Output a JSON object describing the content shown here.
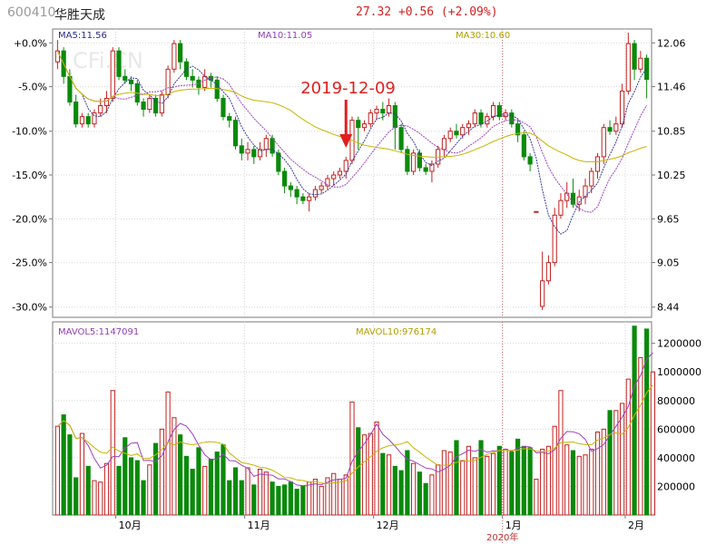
{
  "header": {
    "code": "600410",
    "name": "华胜天成",
    "quote": "27.32  +0.56  (+2.09%)"
  },
  "colors": {
    "up": "#c42020",
    "down": "#0a8a0a",
    "ma5": "#3a3a9a",
    "ma10": "#a040c0",
    "ma30": "#c8b400",
    "grid": "#d8d8d8",
    "frame": "#7a7a7a",
    "annotation": "#e02020",
    "label_blue": "#2a2a8a",
    "label_purple": "#9040b0",
    "label_yellow": "#b0a000"
  },
  "chart_data": [
    {
      "type": "candlestick",
      "title": "",
      "legend": [
        {
          "name": "MA5",
          "value": "11.56"
        },
        {
          "name": "MA10",
          "value": "11.05"
        },
        {
          "name": "MA30",
          "value": "10.60"
        }
      ],
      "left_axis_ticks": [
        "+0.0%",
        "-5.0%",
        "-10.0%",
        "-15.0%",
        "-20.0%",
        "-25.0%",
        "-30.0%"
      ],
      "right_axis_ticks": [
        "12.06",
        "11.46",
        "10.85",
        "10.25",
        "9.65",
        "9.05",
        "8.44"
      ],
      "ylim": [
        8.3,
        12.25
      ],
      "x_labels": [
        "10月",
        "11月",
        "12月",
        "1月",
        "2月"
      ],
      "x_sublabel": "2020年",
      "watermark": "CFi.CN",
      "annotation": {
        "text": "2019-12-09",
        "arrow": "down"
      },
      "candles": [
        [
          11.8,
          11.95,
          12.1,
          11.7
        ],
        [
          11.95,
          11.6,
          12.0,
          11.5
        ],
        [
          11.6,
          11.25,
          11.7,
          11.2
        ],
        [
          11.25,
          10.95,
          11.35,
          10.9
        ],
        [
          10.95,
          11.05,
          11.1,
          10.9
        ],
        [
          11.05,
          10.95,
          11.1,
          10.9
        ],
        [
          10.95,
          11.1,
          11.15,
          10.9
        ],
        [
          11.1,
          11.2,
          11.3,
          11.05
        ],
        [
          11.2,
          11.3,
          11.4,
          11.1
        ],
        [
          11.3,
          11.95,
          12.0,
          11.25
        ],
        [
          11.95,
          11.6,
          12.0,
          11.55
        ],
        [
          11.6,
          11.55,
          11.7,
          11.5
        ],
        [
          11.55,
          11.5,
          11.6,
          11.4
        ],
        [
          11.5,
          11.25,
          11.55,
          11.2
        ],
        [
          11.25,
          11.15,
          11.3,
          11.05
        ],
        [
          11.15,
          11.3,
          11.35,
          11.1
        ],
        [
          11.3,
          11.1,
          11.35,
          11.05
        ],
        [
          11.1,
          11.35,
          11.4,
          11.05
        ],
        [
          11.35,
          11.7,
          11.75,
          11.3
        ],
        [
          11.7,
          12.05,
          12.1,
          11.65
        ],
        [
          12.05,
          11.8,
          12.1,
          11.7
        ],
        [
          11.8,
          11.6,
          11.85,
          11.55
        ],
        [
          11.6,
          11.55,
          11.7,
          11.45
        ],
        [
          11.55,
          11.45,
          11.6,
          11.35
        ],
        [
          11.45,
          11.6,
          11.7,
          11.4
        ],
        [
          11.6,
          11.55,
          11.65,
          11.45
        ],
        [
          11.55,
          11.3,
          11.6,
          11.25
        ],
        [
          11.3,
          11.05,
          11.35,
          11.0
        ],
        [
          11.05,
          11.0,
          11.1,
          10.9
        ],
        [
          11.0,
          10.65,
          11.05,
          10.6
        ],
        [
          10.65,
          10.55,
          10.75,
          10.45
        ],
        [
          10.55,
          10.6,
          10.7,
          10.45
        ],
        [
          10.6,
          10.5,
          10.65,
          10.4
        ],
        [
          10.5,
          10.6,
          10.7,
          10.45
        ],
        [
          10.6,
          10.75,
          10.8,
          10.5
        ],
        [
          10.75,
          10.55,
          10.8,
          10.5
        ],
        [
          10.55,
          10.3,
          10.6,
          10.25
        ],
        [
          10.3,
          10.1,
          10.35,
          10.0
        ],
        [
          10.1,
          10.05,
          10.15,
          9.95
        ],
        [
          10.05,
          9.95,
          10.1,
          9.85
        ],
        [
          9.95,
          9.9,
          10.0,
          9.85
        ],
        [
          9.9,
          9.95,
          10.0,
          9.75
        ],
        [
          9.95,
          10.05,
          10.1,
          9.9
        ],
        [
          10.05,
          10.1,
          10.15,
          10.0
        ],
        [
          10.1,
          10.2,
          10.25,
          10.05
        ],
        [
          10.2,
          10.25,
          10.3,
          10.1
        ],
        [
          10.25,
          10.3,
          10.35,
          10.2
        ],
        [
          10.3,
          10.45,
          10.5,
          10.2
        ],
        [
          10.45,
          11.0,
          11.05,
          10.4
        ],
        [
          11.0,
          10.9,
          11.05,
          10.6
        ],
        [
          10.9,
          10.95,
          11.0,
          10.85
        ],
        [
          10.95,
          11.1,
          11.15,
          10.9
        ],
        [
          11.1,
          11.15,
          11.2,
          11.0
        ],
        [
          11.15,
          11.1,
          11.25,
          11.0
        ],
        [
          11.1,
          11.2,
          11.3,
          11.05
        ],
        [
          11.2,
          10.9,
          11.25,
          10.6
        ],
        [
          10.9,
          10.6,
          10.95,
          10.55
        ],
        [
          10.6,
          10.3,
          10.65,
          10.25
        ],
        [
          10.3,
          10.55,
          10.6,
          10.25
        ],
        [
          10.55,
          10.35,
          10.6,
          10.3
        ],
        [
          10.35,
          10.3,
          10.4,
          10.25
        ],
        [
          10.3,
          10.4,
          10.45,
          10.15
        ],
        [
          10.4,
          10.6,
          10.65,
          10.35
        ],
        [
          10.6,
          10.75,
          10.8,
          10.5
        ],
        [
          10.75,
          10.85,
          10.9,
          10.7
        ],
        [
          10.85,
          10.8,
          10.95,
          10.75
        ],
        [
          10.8,
          10.9,
          10.95,
          10.75
        ],
        [
          10.9,
          10.95,
          11.0,
          10.8
        ],
        [
          10.95,
          11.1,
          11.15,
          10.9
        ],
        [
          11.1,
          10.95,
          11.15,
          10.9
        ],
        [
          10.95,
          11.05,
          11.1,
          10.9
        ],
        [
          11.05,
          11.2,
          11.25,
          11.0
        ],
        [
          11.2,
          11.05,
          11.25,
          11.0
        ],
        [
          11.05,
          11.1,
          11.15,
          11.0
        ],
        [
          11.1,
          10.95,
          11.15,
          10.9
        ],
        [
          10.95,
          10.8,
          11.0,
          10.7
        ],
        [
          10.8,
          10.5,
          10.85,
          10.45
        ],
        [
          10.5,
          10.4,
          10.55,
          10.3
        ],
        [
          9.75,
          9.75,
          9.75,
          9.75
        ],
        [
          8.45,
          8.8,
          9.2,
          8.4
        ],
        [
          8.8,
          9.05,
          9.15,
          8.75
        ],
        [
          9.05,
          9.7,
          9.8,
          9.0
        ],
        [
          9.7,
          9.9,
          10.0,
          9.65
        ],
        [
          9.9,
          10.0,
          10.15,
          9.8
        ],
        [
          10.0,
          9.85,
          10.2,
          9.8
        ],
        [
          9.85,
          9.95,
          10.05,
          9.75
        ],
        [
          9.95,
          10.1,
          10.2,
          9.85
        ],
        [
          10.1,
          10.3,
          10.35,
          10.0
        ],
        [
          10.3,
          10.5,
          10.55,
          10.2
        ],
        [
          10.5,
          10.9,
          10.95,
          10.4
        ],
        [
          10.9,
          10.85,
          11.0,
          10.8
        ],
        [
          10.85,
          10.95,
          11.05,
          10.8
        ],
        [
          10.95,
          11.4,
          11.5,
          10.9
        ],
        [
          11.4,
          12.05,
          12.2,
          11.35
        ],
        [
          12.05,
          11.7,
          12.1,
          11.55
        ],
        [
          11.7,
          11.85,
          11.95,
          11.65
        ],
        [
          11.85,
          11.56,
          11.9,
          11.3
        ]
      ]
    },
    {
      "type": "bar",
      "title": "",
      "legend": [
        {
          "name": "MAVOL5",
          "value": "1147091"
        },
        {
          "name": "MAVOL10",
          "value": "976174"
        }
      ],
      "right_axis_ticks": [
        "1200000",
        "1000000",
        "800000",
        "600000",
        "400000",
        "200000"
      ],
      "ylim": [
        0,
        1350000
      ],
      "values": [
        620000,
        700000,
        560000,
        260000,
        570000,
        340000,
        240000,
        230000,
        360000,
        870000,
        340000,
        540000,
        400000,
        380000,
        240000,
        350000,
        500000,
        600000,
        860000,
        680000,
        560000,
        410000,
        320000,
        470000,
        340000,
        390000,
        440000,
        490000,
        240000,
        330000,
        240000,
        330000,
        210000,
        320000,
        300000,
        230000,
        200000,
        210000,
        230000,
        180000,
        200000,
        230000,
        250000,
        200000,
        260000,
        290000,
        250000,
        280000,
        790000,
        610000,
        560000,
        570000,
        650000,
        430000,
        420000,
        340000,
        310000,
        450000,
        360000,
        300000,
        220000,
        280000,
        350000,
        450000,
        440000,
        520000,
        380000,
        480000,
        400000,
        520000,
        410000,
        430000,
        480000,
        460000,
        440000,
        530000,
        480000,
        470000,
        250000,
        460000,
        480000,
        620000,
        870000,
        490000,
        450000,
        410000,
        420000,
        460000,
        580000,
        600000,
        730000,
        730000,
        780000,
        950000,
        1320000,
        1100000,
        1300000,
        1000000
      ]
    }
  ]
}
